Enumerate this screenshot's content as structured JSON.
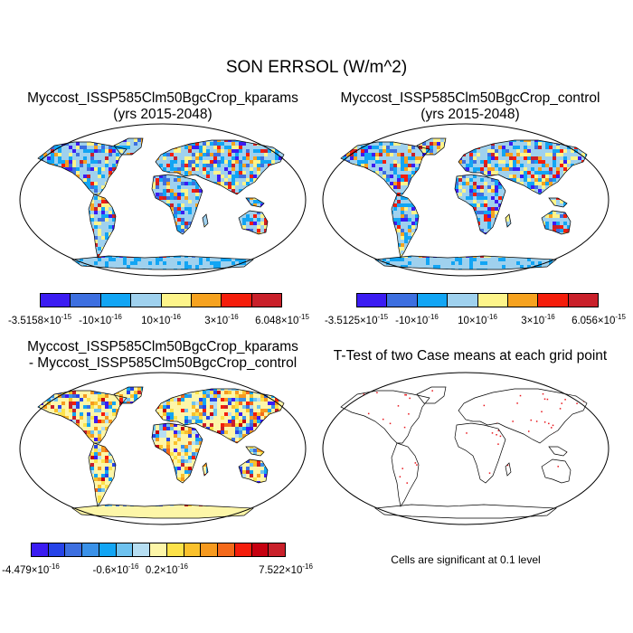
{
  "figure": {
    "title": "SON ERRSOL (W/m^2)"
  },
  "panels": [
    {
      "id": "kparams",
      "title_lines": [
        "Myccost_ISSP585Clm50BgcCrop_kparams",
        "(yrs 2015-2048)"
      ],
      "colorbar": {
        "colors": [
          "#3b1cf2",
          "#3d6fe0",
          "#12a5f4",
          "#9fd1ee",
          "#fdf48a",
          "#f6a21f",
          "#f41d0b",
          "#c9202a"
        ],
        "labels": [
          {
            "mant": "-3.5158",
            "exp": "-15",
            "pos": 0
          },
          {
            "mant": "-10",
            "exp": "-16",
            "pos": 0.25
          },
          {
            "mant": "10",
            "exp": "-16",
            "pos": 0.5
          },
          {
            "mant": "3",
            "exp": "-16",
            "pos": 0.75
          },
          {
            "mant": "6.048",
            "exp": "-15",
            "pos": 1
          }
        ]
      }
    },
    {
      "id": "control",
      "title_lines": [
        "Myccost_ISSP585Clm50BgcCrop_control",
        "(yrs 2015-2048)"
      ],
      "colorbar": {
        "colors": [
          "#3b1cf2",
          "#3d6fe0",
          "#12a5f4",
          "#9fd1ee",
          "#fdf48a",
          "#f6a21f",
          "#f41d0b",
          "#c9202a"
        ],
        "labels": [
          {
            "mant": "-3.5125",
            "exp": "-15",
            "pos": 0
          },
          {
            "mant": "-10",
            "exp": "-16",
            "pos": 0.25
          },
          {
            "mant": "10",
            "exp": "-16",
            "pos": 0.5
          },
          {
            "mant": "3",
            "exp": "-16",
            "pos": 0.75
          },
          {
            "mant": "6.056",
            "exp": "-15",
            "pos": 1
          }
        ]
      }
    },
    {
      "id": "difference",
      "title_lines": [
        "Myccost_ISSP585Clm50BgcCrop_kparams",
        "- Myccost_ISSP585Clm50BgcCrop_control"
      ],
      "colorbar": {
        "colors": [
          "#3b1cf2",
          "#2643e8",
          "#3d6fe0",
          "#3a91e8",
          "#12a5f4",
          "#6ec2ef",
          "#b6def2",
          "#fdf6a8",
          "#fde249",
          "#fac12c",
          "#f69a1f",
          "#f4691a",
          "#f41d0b",
          "#c60010",
          "#c9202a"
        ],
        "labels": [
          {
            "mant": "-4.479",
            "exp": "-16",
            "pos": 0
          },
          {
            "mant": "-0.6",
            "exp": "-16",
            "pos": 0.3333
          },
          {
            "mant": "0.2",
            "exp": "-16",
            "pos": 0.5333
          },
          {
            "mant": "7.522",
            "exp": "-16",
            "pos": 1
          }
        ]
      }
    },
    {
      "id": "ttest",
      "title_lines": [
        "T-Test of two Case means at each grid point"
      ],
      "note": "Cells are significant at 0.1 level"
    }
  ]
}
